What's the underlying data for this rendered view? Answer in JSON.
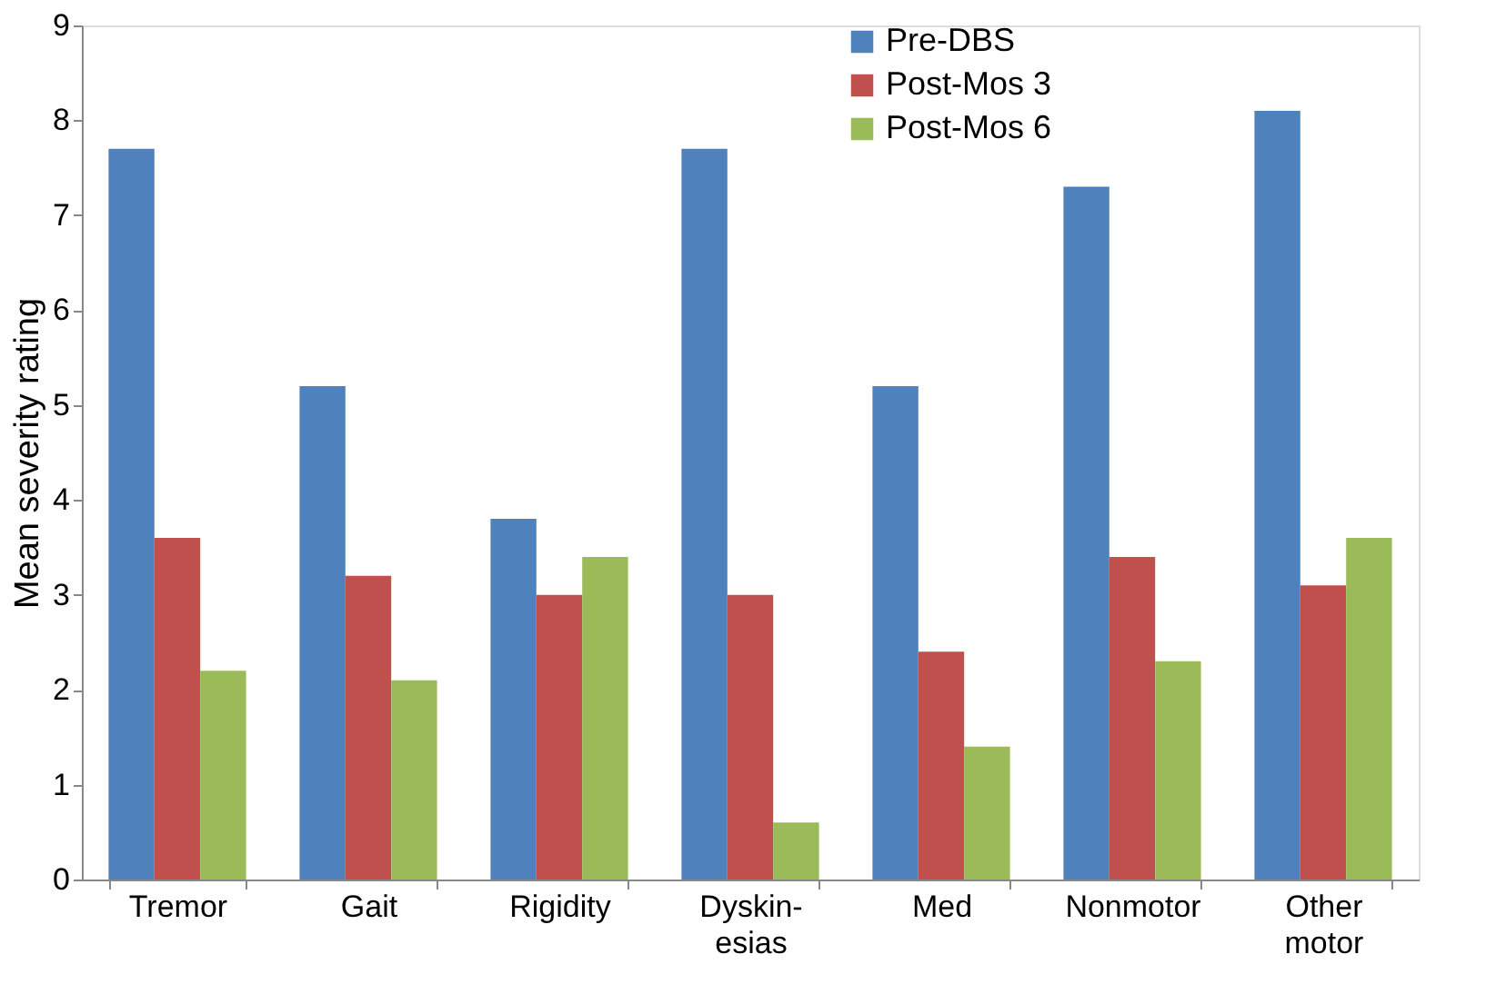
{
  "chart_data": {
    "type": "bar",
    "ylabel": "Mean severity rating",
    "categories": [
      "Tremor",
      "Gait",
      "Rigidity",
      "Dyskin-\nesias",
      "Med",
      "Nonmotor",
      "Other\nmotor"
    ],
    "series": [
      {
        "name": "Pre-DBS",
        "color": "#4f81bd",
        "values": [
          7.7,
          5.2,
          3.8,
          7.7,
          5.2,
          7.3,
          8.1
        ]
      },
      {
        "name": "Post-Mos 3",
        "color": "#c0504d",
        "values": [
          3.6,
          3.2,
          3.0,
          3.0,
          2.4,
          3.4,
          3.1
        ]
      },
      {
        "name": "Post-Mos 6",
        "color": "#9bbb59",
        "values": [
          2.2,
          2.1,
          3.4,
          0.6,
          1.4,
          2.3,
          3.6
        ]
      }
    ],
    "ylim": [
      0,
      9
    ],
    "yticks": [
      0,
      1,
      2,
      3,
      4,
      5,
      6,
      7,
      8,
      9
    ],
    "grid": false,
    "legend": "top right"
  }
}
